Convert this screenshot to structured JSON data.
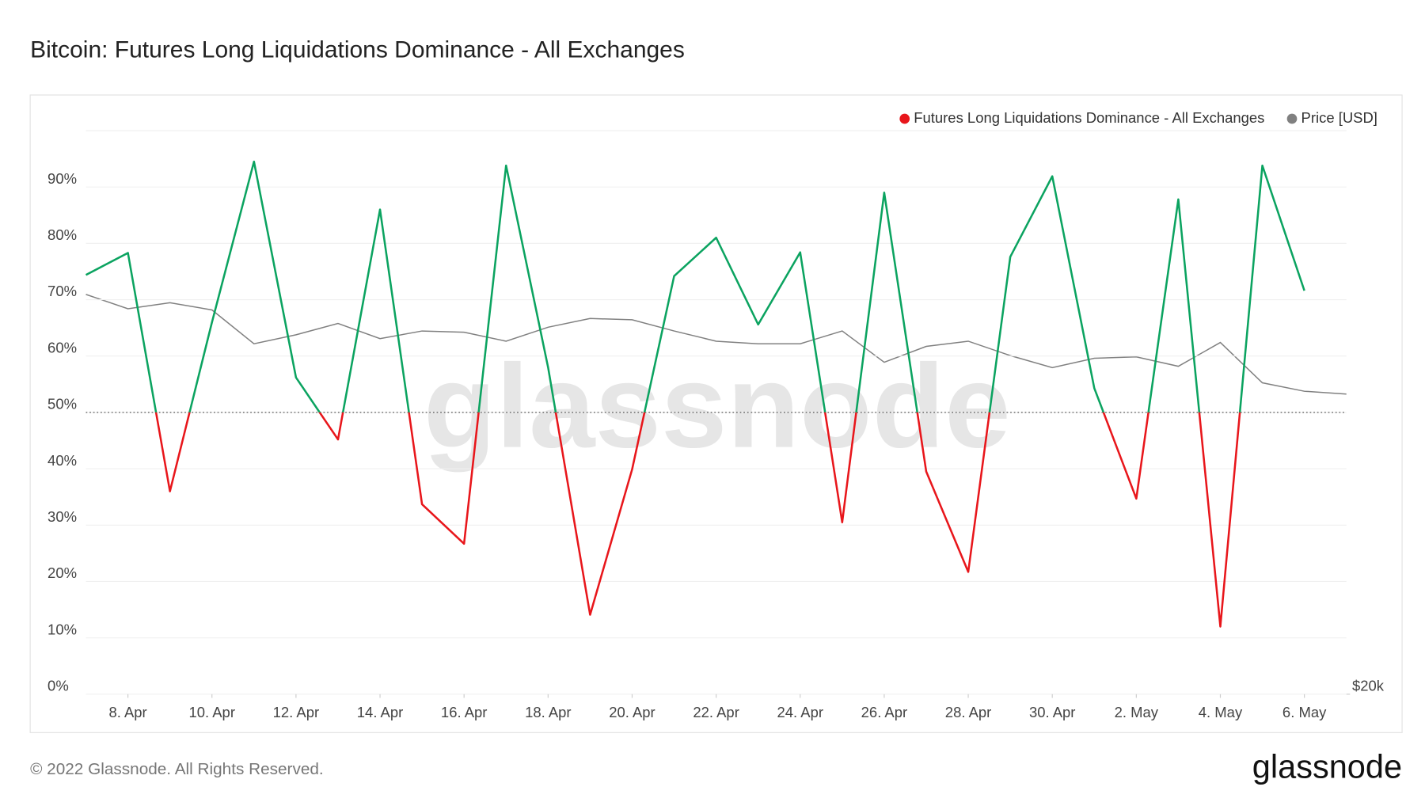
{
  "chart_data": {
    "type": "line",
    "title": "Bitcoin: Futures Long Liquidations Dominance - All Exchanges",
    "watermark": "glassnode",
    "footer": "© 2022 Glassnode. All Rights Reserved.",
    "brand": "glassnode",
    "categories": [
      null,
      "8. Apr",
      null,
      "10. Apr",
      null,
      "12. Apr",
      null,
      "14. Apr",
      null,
      "16. Apr",
      null,
      "18. Apr",
      null,
      "20. Apr",
      null,
      "22. Apr",
      null,
      "24. Apr",
      null,
      "26. Apr",
      null,
      "28. Apr",
      null,
      "30. Apr",
      null,
      "2. May",
      null,
      "4. May",
      null,
      "6. May",
      null
    ],
    "series": [
      {
        "name": "Futures Long Liquidations Dominance - All Exchanges",
        "color": "#e8161b",
        "color_above": "#0ba360",
        "threshold": 50,
        "values": [
          74.4,
          78.3,
          36,
          66,
          94.5,
          56.2,
          45.2,
          86,
          33.7,
          26.7,
          93.8,
          58,
          14.1,
          39.9,
          74.2,
          81,
          65.6,
          78.4,
          30.5,
          89,
          39.5,
          21.7,
          77.6,
          91.9,
          54.3,
          34.7,
          87.8,
          12,
          93.8,
          71.6,
          null
        ]
      },
      {
        "name": "Price [USD]",
        "color": "#808080",
        "axis": "y2",
        "values": [
          43600,
          42400,
          42900,
          42300,
          39600,
          40300,
          41200,
          40000,
          40600,
          40500,
          39800,
          40900,
          41600,
          41500,
          40600,
          39800,
          39600,
          39600,
          40600,
          38200,
          39400,
          39800,
          38700,
          37800,
          38500,
          38600,
          37900,
          39700,
          36700,
          36100,
          35900
        ]
      }
    ],
    "ylim": [
      0,
      100
    ],
    "yticks": [
      {
        "value": 0,
        "label": "0%"
      },
      {
        "value": 10,
        "label": "10%"
      },
      {
        "value": 20,
        "label": "20%"
      },
      {
        "value": 30,
        "label": "30%"
      },
      {
        "value": 40,
        "label": "40%"
      },
      {
        "value": 50,
        "label": "50%"
      },
      {
        "value": 60,
        "label": "60%"
      },
      {
        "value": 70,
        "label": "70%"
      },
      {
        "value": 80,
        "label": "80%"
      },
      {
        "value": 90,
        "label": "90%"
      }
    ],
    "y2lim": [
      20000,
      60000
    ],
    "y2log": true,
    "y2ticks": [
      {
        "value": 20000,
        "label": "$20k"
      }
    ],
    "grid": true,
    "legend": "top-right"
  }
}
